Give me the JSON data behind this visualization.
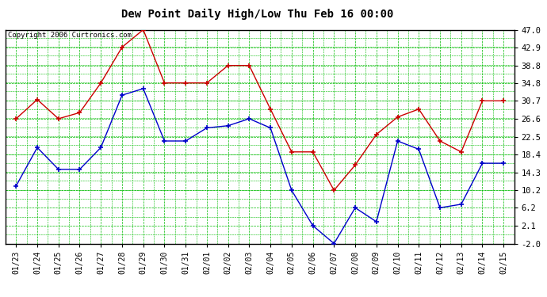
{
  "title": "Dew Point Daily High/Low Thu Feb 16 00:00",
  "copyright": "Copyright 2006 Curtronics.com",
  "dates": [
    "01/23",
    "01/24",
    "01/25",
    "01/26",
    "01/27",
    "01/28",
    "01/29",
    "01/30",
    "01/31",
    "02/01",
    "02/02",
    "02/03",
    "02/04",
    "02/05",
    "02/06",
    "02/07",
    "02/08",
    "02/09",
    "02/10",
    "02/11",
    "02/12",
    "02/13",
    "02/14",
    "02/15"
  ],
  "high": [
    26.6,
    31.0,
    26.6,
    28.0,
    34.8,
    43.0,
    47.0,
    34.8,
    34.8,
    34.8,
    38.8,
    38.8,
    28.8,
    19.0,
    19.0,
    10.2,
    16.0,
    23.0,
    27.0,
    28.8,
    21.5,
    19.0,
    30.7,
    30.7
  ],
  "low": [
    11.2,
    20.0,
    15.0,
    15.0,
    20.0,
    32.0,
    33.5,
    21.5,
    21.5,
    24.5,
    25.0,
    26.6,
    24.5,
    10.2,
    2.1,
    -2.0,
    6.2,
    3.0,
    21.5,
    19.6,
    6.2,
    7.0,
    16.4,
    16.4
  ],
  "ylim": [
    -2.0,
    47.0
  ],
  "yticks": [
    -2.0,
    2.1,
    6.2,
    10.2,
    14.3,
    18.4,
    22.5,
    26.6,
    30.7,
    34.8,
    38.8,
    42.9,
    47.0
  ],
  "high_color": "#cc0000",
  "low_color": "#0000cc",
  "bg_color": "#ffffff",
  "grid_color": "#00bb00",
  "plot_bg": "#ffffff"
}
